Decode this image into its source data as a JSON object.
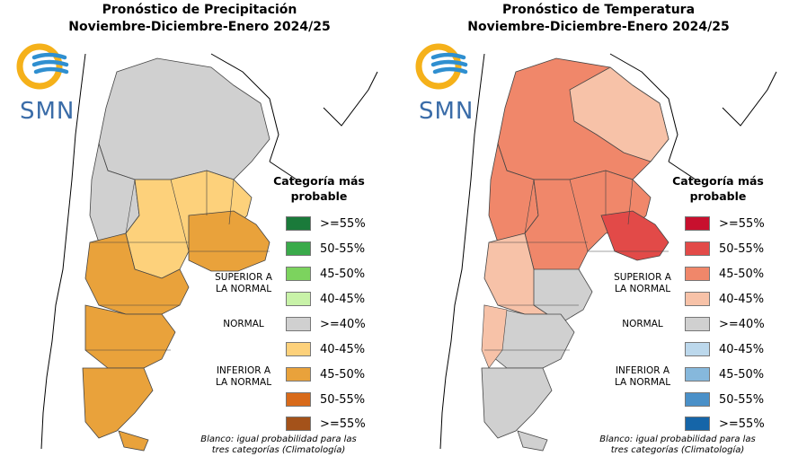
{
  "panels": [
    {
      "title_line1": "Pronóstico de Precipitación",
      "title_line2": "Noviembre-Diciembre-Enero 2024/25",
      "logo_text": "SMN",
      "legend_title_line1": "Categoría más",
      "legend_title_line2": "probable",
      "legend_items": [
        {
          "label": ">=55%",
          "color": "#1a7a3a"
        },
        {
          "label": "50-55%",
          "color": "#3aaa4a"
        },
        {
          "label": "45-50%",
          "color": "#7cd35e"
        },
        {
          "label": "40-45%",
          "color": "#c8f2a8"
        },
        {
          "label": ">=40%",
          "color": "#d0d0d0"
        },
        {
          "label": "40-45%",
          "color": "#fdd17b"
        },
        {
          "label": "45-50%",
          "color": "#e9a23b"
        },
        {
          "label": "50-55%",
          "color": "#d86a1a"
        },
        {
          "label": ">=55%",
          "color": "#a4521a"
        }
      ],
      "group_superior_line1": "SUPERIOR A",
      "group_superior_line2": "LA NORMAL",
      "group_normal": "NORMAL",
      "group_inferior_line1": "INFERIOR A",
      "group_inferior_line2": "LA NORMAL",
      "note_line1": "Blanco: igual probabilidad para las",
      "note_line2": "tres categorías (Climatología)"
    },
    {
      "title_line1": "Pronóstico de Temperatura",
      "title_line2": "Noviembre-Diciembre-Enero 2024/25",
      "logo_text": "SMN",
      "legend_title_line1": "Categoría más",
      "legend_title_line2": "probable",
      "legend_items": [
        {
          "label": ">=55%",
          "color": "#c8102e"
        },
        {
          "label": "50-55%",
          "color": "#e24a48"
        },
        {
          "label": "45-50%",
          "color": "#f0876a"
        },
        {
          "label": "40-45%",
          "color": "#f7c2a8"
        },
        {
          "label": ">=40%",
          "color": "#d0d0d0"
        },
        {
          "label": "40-45%",
          "color": "#bcd8ec"
        },
        {
          "label": "45-50%",
          "color": "#86b8dc"
        },
        {
          "label": "50-55%",
          "color": "#4a90c8"
        },
        {
          "label": ">=55%",
          "color": "#1565a8"
        }
      ],
      "group_superior_line1": "SUPERIOR A",
      "group_superior_line2": "LA NORMAL",
      "group_normal": "NORMAL",
      "group_inferior_line1": "INFERIOR A",
      "group_inferior_line2": "LA NORMAL",
      "note_line1": "Blanco: igual probabilidad para las",
      "note_line2": "tres categorías (Climatología)"
    }
  ]
}
